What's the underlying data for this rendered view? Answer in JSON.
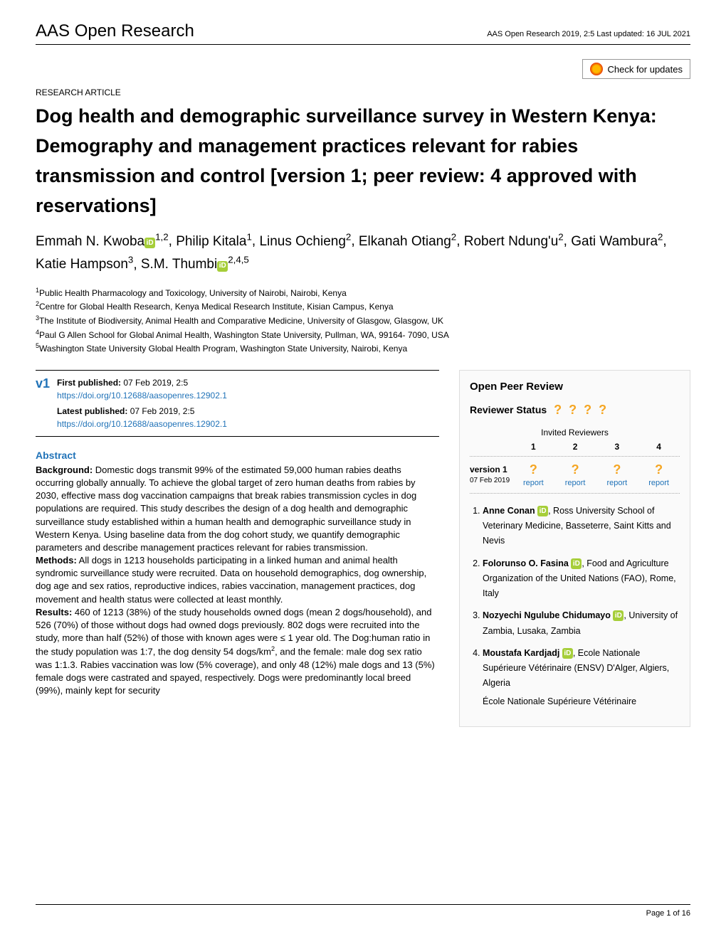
{
  "header": {
    "journal": "AAS Open Research",
    "meta": "AAS Open Research 2019, 2:5 Last updated: 16 JUL 2021"
  },
  "checkUpdates": "Check for updates",
  "articleType": "RESEARCH ARTICLE",
  "title": "Dog health and demographic surveillance survey in Western Kenya: Demography and management practices relevant for rabies transmission and control [version 1; peer review: 4 approved with reservations]",
  "authors": [
    {
      "name": "Emmah N. Kwoba",
      "orcid": true,
      "aff": "1,2"
    },
    {
      "name": "Philip Kitala",
      "orcid": false,
      "aff": "1"
    },
    {
      "name": "Linus Ochieng",
      "orcid": false,
      "aff": "2"
    },
    {
      "name": "Elkanah Otiang",
      "orcid": false,
      "aff": "2"
    },
    {
      "name": "Robert Ndung'u",
      "orcid": false,
      "aff": "2"
    },
    {
      "name": "Gati Wambura",
      "orcid": false,
      "aff": "2"
    },
    {
      "name": "Katie Hampson",
      "orcid": false,
      "aff": "3"
    },
    {
      "name": "S.M. Thumbi",
      "orcid": true,
      "aff": "2,4,5"
    }
  ],
  "affiliations": [
    "Public Health Pharmacology and Toxicology, University of Nairobi, Nairobi, Kenya",
    "Centre for Global Health Research, Kenya Medical Research Institute, Kisian Campus, Kenya",
    "The Institute of Biodiversity, Animal Health and Comparative Medicine, University of Glasgow, Glasgow, UK",
    "Paul G Allen School for Global Animal Health, Washington State University, Pullman, WA, 99164- 7090, USA",
    "Washington State University Global Health Program, Washington State University, Nairobi, Kenya"
  ],
  "pub": {
    "version": "v1",
    "firstLabel": "First published:",
    "first": "07 Feb 2019, 2:5",
    "firstDoi": "https://doi.org/10.12688/aasopenres.12902.1",
    "latestLabel": "Latest published:",
    "latest": "07 Feb 2019, 2:5",
    "latestDoi": "https://doi.org/10.12688/aasopenres.12902.1"
  },
  "abstractHead": "Abstract",
  "abstract": {
    "bgLabel": "Background:",
    "bg": " Domestic dogs transmit 99% of the estimated 59,000 human rabies deaths occurring globally annually. To achieve the global target of zero human deaths from rabies by 2030, effective mass dog vaccination campaigns that break rabies transmission cycles in dog populations are required. This study describes the design of a dog health and demographic surveillance study established within a human health and demographic surveillance study in Western Kenya. Using baseline data from the dog cohort study, we quantify demographic parameters and describe management practices relevant for rabies transmission.",
    "methLabel": "Methods:",
    "meth": " All dogs in 1213 households participating in a linked human and animal health syndromic surveillance study were recruited. Data on household demographics, dog ownership, dog age and sex ratios, reproductive indices, rabies vaccination, management practices, dog movement and health status were collected at least monthly.",
    "resLabel": "Results:",
    "res": " 460 of 1213 (38%) of the study households owned dogs (mean 2 dogs/household), and 526 (70%) of those without dogs had owned dogs previously. 802 dogs were recruited into the study, more than half (52%) of those with known ages were ≤ 1 year old. The Dog:human ratio in the study population was 1:7, the dog density 54 dogs/km",
    "res2": ", and the female: male dog sex ratio was 1:1.3. Rabies vaccination was low (5% coverage), and only 48 (12%) male dogs and 13 (5%) female dogs were castrated and spayed, respectively. Dogs were predominantly local breed (99%), mainly kept for security"
  },
  "peer": {
    "title": "Open Peer Review",
    "statusLabel": "Reviewer Status",
    "invited": "Invited Reviewers",
    "nums": [
      "1",
      "2",
      "3",
      "4"
    ],
    "version": "version 1",
    "date": "07 Feb 2019",
    "report": "report"
  },
  "reviewers": [
    {
      "name": "Anne Conan",
      "aff": ", Ross University School of Veterinary Medicine, Basseterre, Saint Kitts and Nevis"
    },
    {
      "name": "Folorunso O. Fasina",
      "aff": ", Food and Agriculture Organization of the United Nations (FAO), Rome, Italy"
    },
    {
      "name": "Nozyechi Ngulube Chidumayo",
      "aff": ", University of Zambia, Lusaka, Zambia"
    },
    {
      "name": "Moustafa Kardjadj",
      "aff": ", Ecole Nationale Supérieure Vétérinaire (ENSV) D'Alger, Algiers, Algeria",
      "extra": "École Nationale Supérieure Vétérinaire"
    }
  ],
  "footer": "Page 1 of 16"
}
